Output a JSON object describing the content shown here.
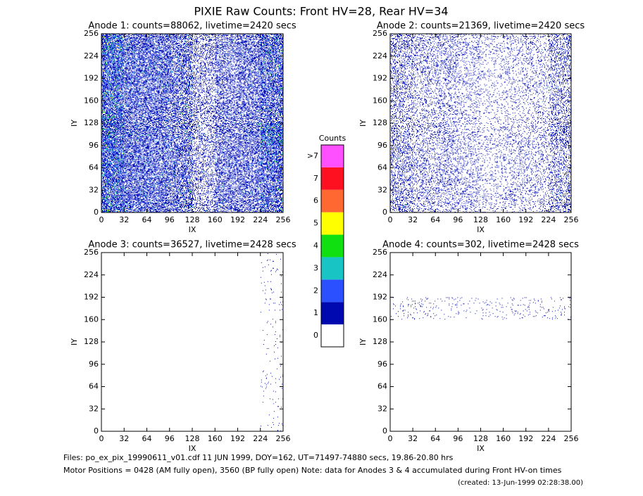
{
  "title": "PIXIE Raw Counts:  Front HV=28, Rear HV=34",
  "colorbar": {
    "title": "Counts",
    "ticks": [
      0,
      1,
      2,
      3,
      4,
      5,
      6,
      7,
      {
        "value": 8,
        "label": ">7"
      }
    ],
    "colors": [
      "#ffffff",
      "#0008b0",
      "#2a50ff",
      "#18c4c4",
      "#10e010",
      "#ffff00",
      "#ff6830",
      "#ff1020",
      "#ff50ff"
    ]
  },
  "chart_data": [
    {
      "type": "heatmap",
      "title": "Anode 1: counts=88062, livetime=2420 secs",
      "xlabel": "IX",
      "ylabel": "IY",
      "xlim": [
        0,
        256
      ],
      "ylim": [
        0,
        256
      ],
      "xticks": [
        0,
        32,
        64,
        96,
        128,
        160,
        192,
        224,
        256
      ],
      "yticks": [
        0,
        32,
        64,
        96,
        128,
        160,
        192,
        224,
        256
      ],
      "values": [
        [
          1.3,
          0.9,
          0.8,
          0.7,
          0.35,
          0.6,
          0.6,
          0.9
        ],
        [
          1.2,
          0.8,
          0.8,
          0.7,
          0.35,
          0.55,
          0.6,
          0.9
        ],
        [
          1.3,
          0.85,
          0.8,
          0.7,
          0.35,
          0.55,
          0.6,
          1.0
        ],
        [
          1.3,
          0.85,
          0.8,
          0.7,
          0.35,
          0.55,
          0.65,
          1.4
        ],
        [
          1.2,
          0.8,
          0.75,
          0.65,
          0.3,
          0.55,
          0.6,
          0.9
        ],
        [
          1.2,
          0.8,
          0.75,
          0.65,
          0.3,
          0.5,
          0.55,
          0.9
        ],
        [
          1.3,
          0.85,
          0.8,
          0.65,
          0.3,
          0.5,
          0.6,
          0.9
        ],
        [
          1.4,
          0.85,
          0.8,
          0.7,
          0.35,
          0.55,
          0.6,
          1.0
        ]
      ]
    },
    {
      "type": "heatmap",
      "title": "Anode 2: counts=21369, livetime=2420 secs",
      "xlabel": "IX",
      "ylabel": "IY",
      "xlim": [
        0,
        256
      ],
      "ylim": [
        0,
        256
      ],
      "xticks": [
        0,
        32,
        64,
        96,
        128,
        160,
        192,
        224,
        256
      ],
      "yticks": [
        0,
        32,
        64,
        96,
        128,
        160,
        192,
        224,
        256
      ],
      "values": [
        [
          0.35,
          0.22,
          0.2,
          0.18,
          0.1,
          0.15,
          0.15,
          0.3
        ],
        [
          0.3,
          0.22,
          0.25,
          0.18,
          0.1,
          0.15,
          0.15,
          0.3
        ],
        [
          0.3,
          0.2,
          0.2,
          0.15,
          0.1,
          0.14,
          0.15,
          0.28
        ],
        [
          0.3,
          0.2,
          0.28,
          0.15,
          0.1,
          0.14,
          0.15,
          0.4
        ],
        [
          0.28,
          0.18,
          0.2,
          0.15,
          0.08,
          0.12,
          0.14,
          0.28
        ],
        [
          0.28,
          0.18,
          0.18,
          0.15,
          0.08,
          0.12,
          0.14,
          0.28
        ],
        [
          0.3,
          0.2,
          0.25,
          0.15,
          0.1,
          0.14,
          0.15,
          0.3
        ],
        [
          0.35,
          0.22,
          0.22,
          0.18,
          0.1,
          0.15,
          0.16,
          0.35
        ]
      ]
    },
    {
      "type": "heatmap",
      "title": "Anode 3: counts=36527, livetime=2428 secs",
      "xlabel": "IX",
      "ylabel": "IY",
      "xlim": [
        0,
        256
      ],
      "ylim": [
        0,
        256
      ],
      "xticks": [
        0,
        32,
        64,
        96,
        128,
        160,
        192,
        224,
        256
      ],
      "yticks": [
        0,
        32,
        64,
        96,
        128,
        160,
        192,
        224,
        256
      ],
      "values": [
        [
          0,
          0,
          0,
          0,
          0,
          0,
          0,
          0.02
        ],
        [
          0,
          0,
          0,
          0,
          0,
          0,
          0,
          0.02
        ],
        [
          0,
          0,
          0,
          0,
          0,
          0,
          0,
          0.02
        ],
        [
          0,
          0,
          0,
          0,
          0,
          0,
          0,
          0.02
        ],
        [
          0,
          0,
          0,
          0,
          0,
          0,
          0,
          0.02
        ],
        [
          0,
          0,
          0,
          0,
          0,
          0,
          0,
          0.02
        ],
        [
          0,
          0,
          0,
          0,
          0,
          0,
          0,
          0.02
        ],
        [
          0,
          0,
          0,
          0,
          0,
          0,
          0,
          0.02
        ]
      ]
    },
    {
      "type": "heatmap",
      "title": "Anode 4: counts=302, livetime=2428 secs",
      "xlabel": "IX",
      "ylabel": "IY",
      "xlim": [
        0,
        256
      ],
      "ylim": [
        0,
        256
      ],
      "xticks": [
        0,
        32,
        64,
        96,
        128,
        160,
        192,
        224,
        256
      ],
      "yticks": [
        0,
        32,
        64,
        96,
        128,
        160,
        192,
        224,
        256
      ],
      "values": [
        [
          0,
          0,
          0,
          0,
          0,
          0,
          0,
          0
        ],
        [
          0,
          0,
          0,
          0,
          0,
          0,
          0,
          0
        ],
        [
          0,
          0,
          0,
          0,
          0,
          0,
          0,
          0
        ],
        [
          0,
          0,
          0,
          0,
          0,
          0,
          0,
          0
        ],
        [
          0,
          0,
          0,
          0,
          0,
          0,
          0,
          0
        ],
        [
          0.04,
          0.04,
          0.03,
          0.03,
          0.04,
          0.04,
          0.04,
          0.05
        ],
        [
          0,
          0,
          0,
          0,
          0,
          0,
          0,
          0
        ],
        [
          0,
          0,
          0,
          0,
          0,
          0,
          0,
          0
        ]
      ]
    }
  ],
  "footer": [
    "Files: po_ex_pix_19990611_v01.cdf    11 JUN 1999, DOY=162, UT=71497-74880 secs, 19.86-20.80 hrs",
    "Motor Positions = 0428 (AM fully open), 3560 (BP fully open)    Note: data for Anodes 3 & 4 accumulated during Front HV-on times",
    "(created: 13-Jun-1999 02:28:38.00)"
  ]
}
